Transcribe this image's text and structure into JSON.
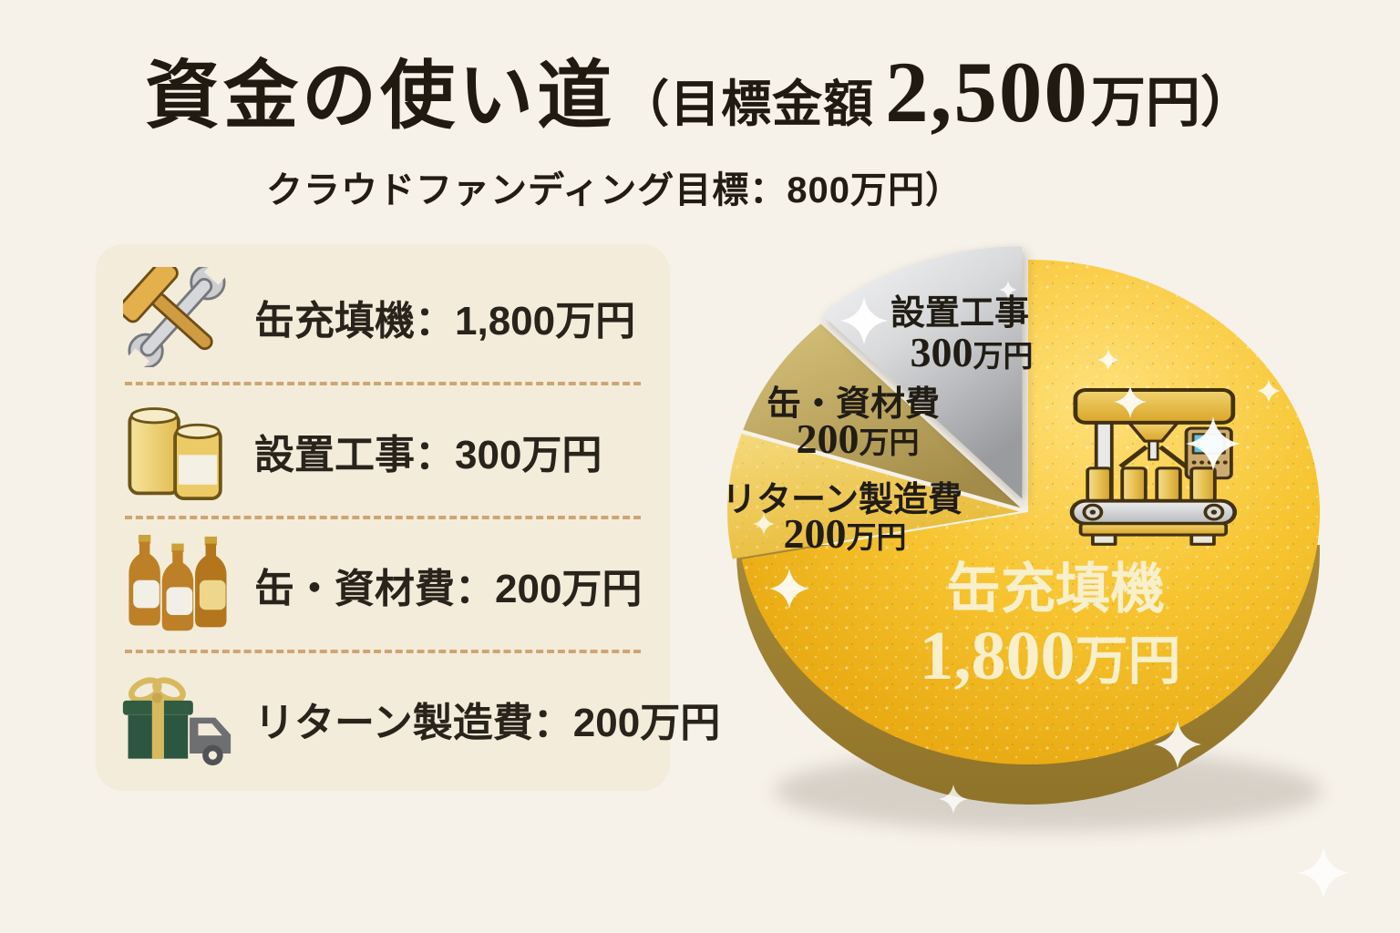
{
  "page": {
    "background": "#f6f1e9"
  },
  "header": {
    "title_main": "資金の使い道",
    "title_paren_open": "（目標金額",
    "title_amount": "2,500",
    "title_paren_close": "万円）",
    "subtitle": "クラウドファンディング目標：800万円）"
  },
  "legend": {
    "items": [
      {
        "icon": "tools-icon",
        "label": "缶充填機：1,800万円"
      },
      {
        "icon": "cans-icon",
        "label": "設置工事：300万円"
      },
      {
        "icon": "bottles-icon",
        "label": "缶・資材費：200万円"
      },
      {
        "icon": "gift-truck-icon",
        "label": "リターン製造費：200万円"
      }
    ]
  },
  "chart_data": {
    "type": "pie",
    "title": "資金の使い道（目標金額 2,500万円）",
    "subtitle": "クラウドファンディング目標：800万円）",
    "unit": "万円",
    "total": 2500,
    "start_angle_deg": 0,
    "direction": "clockwise",
    "legend_position": "left",
    "slices": [
      {
        "label": "缶充填機",
        "value": 1800,
        "number": "1,800",
        "unit": "万円",
        "color": "#f2b722",
        "style": "sparkly-gold",
        "text_color": "#f8efcb"
      },
      {
        "label": "リターン製造費",
        "value": 200,
        "number": "200",
        "unit": "万円",
        "color": "#edc95d",
        "style": "light-gold",
        "text_color": "#211d15"
      },
      {
        "label": "缶・資材費",
        "value": 200,
        "number": "200",
        "unit": "万円",
        "color": "#c2ab60",
        "style": "khaki-gold",
        "text_color": "#211d15"
      },
      {
        "label": "設置工事",
        "value": 300,
        "number": "300",
        "unit": "万円",
        "color": "#c6c7ca",
        "style": "silver",
        "text_color": "#211d15"
      }
    ],
    "decorations": {
      "center_icon": "can-filling-machine-icon",
      "sparkles": "sparkle-icon"
    }
  }
}
